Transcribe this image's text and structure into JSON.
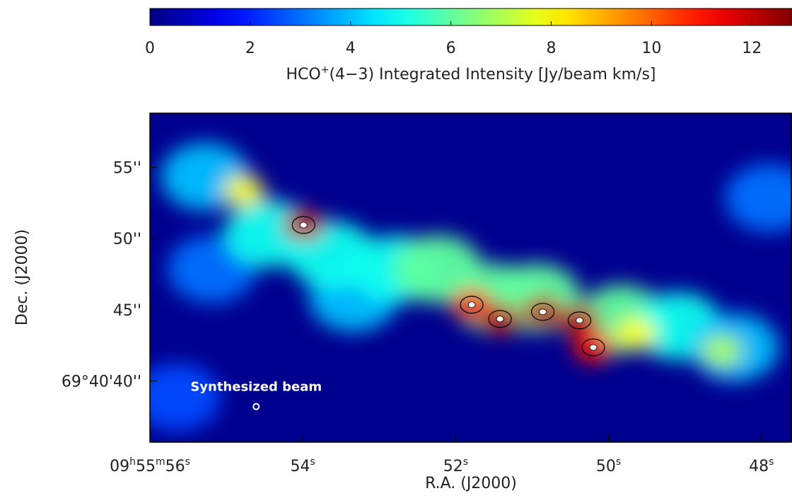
{
  "chart_data": {
    "type": "image",
    "colorbar": {
      "label": [
        "HCO",
        "+",
        "(4−3) Integrated Intensity [Jy/beam km/s]"
      ],
      "clim": [
        0,
        12.8
      ],
      "ticks": [
        0,
        2,
        4,
        6,
        8,
        10,
        12
      ],
      "colormap": "jet"
    },
    "xlabel": "R.A. (J2000)",
    "ylabel": "Dec. (J2000)",
    "xlim": [
      56,
      47.6
    ],
    "ylim": [
      35.7,
      58.8
    ],
    "xticks": [
      {
        "value": 56,
        "label": [
          "09",
          "h",
          "55",
          "m",
          "56",
          "s"
        ]
      },
      {
        "value": 54,
        "label": [
          "54",
          "s"
        ]
      },
      {
        "value": 52,
        "label": [
          "52",
          "s"
        ]
      },
      {
        "value": 50,
        "label": [
          "50",
          "s"
        ]
      },
      {
        "value": 48,
        "label": [
          "48",
          "s"
        ]
      }
    ],
    "yticks": [
      {
        "value": 55,
        "label": "55''"
      },
      {
        "value": 50,
        "label": "50''"
      },
      {
        "value": 45,
        "label": "45''"
      },
      {
        "value": 40,
        "label": "69°40'40''"
      }
    ],
    "emission": {
      "x": [
        55.65,
        47.9,
        55.19,
        53.34,
        55.28,
        54.45,
        53.62,
        52.79,
        52.23,
        51.49,
        50.94,
        49.83,
        49.09,
        48.35,
        54.77,
        49.64,
        48.52,
        51.79,
        50.2,
        53.99,
        51.42,
        50.86,
        50.38
      ],
      "y": [
        38.85,
        52.85,
        47.85,
        45.85,
        54.35,
        50.35,
        48.85,
        47.85,
        47.85,
        45.85,
        45.85,
        44.35,
        43.85,
        42.35,
        53.35,
        43.35,
        42.1,
        45.35,
        42.35,
        50.95,
        44.35,
        44.85,
        44.25
      ],
      "values": [
        2.5,
        3,
        3,
        4,
        4,
        5,
        5,
        5,
        6,
        6,
        6,
        6,
        5,
        4,
        8,
        8,
        7,
        11,
        11,
        12,
        12,
        12,
        12
      ]
    },
    "annotations": [
      {
        "text": "Synthesized beam",
        "x": 54.61,
        "y": 38.2
      }
    ]
  }
}
